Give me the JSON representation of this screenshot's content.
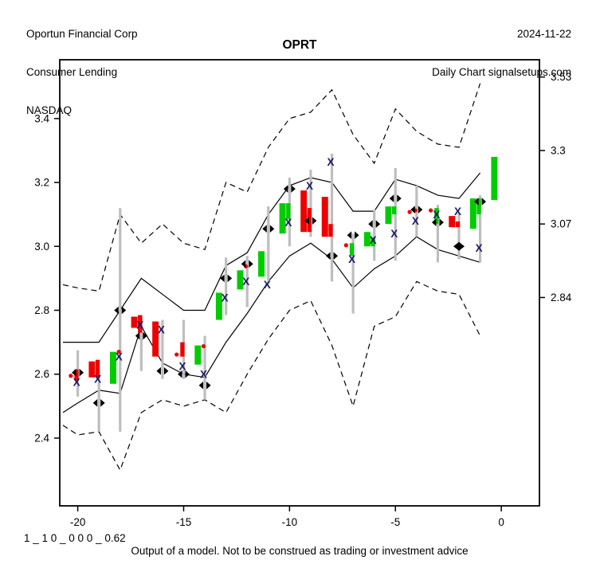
{
  "header": {
    "company": "Oportun Financial Corp",
    "industry": "Consumer Lending",
    "exchange": "NASDAQ",
    "date": "2024-11-22",
    "chart_type": "Daily Chart signalsetups.com"
  },
  "title": "OPRT",
  "footer": {
    "model_params": "1 _ 1 0 _ 0 0 0 _ 0.62",
    "disclaimer": "Output of a model. Not to be construed as trading or investment advice"
  },
  "chart_data": {
    "type": "candlestick-with-bands",
    "title": "OPRT",
    "xlabel": "",
    "ylabel": "",
    "grid": false,
    "x_axis": {
      "ticks": [
        -20,
        -15,
        -10,
        -5,
        0
      ],
      "range": [
        -20.85,
        1.8
      ]
    },
    "y_axis_left": {
      "ticks": [
        2.4,
        2.6,
        2.8,
        3.0,
        3.2,
        3.4
      ],
      "range": [
        2.188,
        3.584
      ]
    },
    "y_axis_right": {
      "ticks": [
        3.53,
        3.3,
        3.07,
        2.84
      ]
    },
    "colors": {
      "up": "#00CC00",
      "down": "#EE0000",
      "range_bar": "#BEBEBE",
      "line": "#000000",
      "x_marker": "#1a1a66",
      "diamond": "#000000",
      "background": "#ffffff"
    },
    "bands": {
      "x": [
        -20.7,
        -20,
        -19,
        -18,
        -17,
        -16,
        -15,
        -14,
        -13,
        -12,
        -11,
        -10,
        -9,
        -8,
        -7,
        -6,
        -5,
        -4,
        -3,
        -2,
        -1
      ],
      "upper_dashed": [
        2.88,
        2.87,
        2.86,
        3.1,
        3.01,
        3.07,
        3.01,
        2.99,
        3.2,
        3.17,
        3.31,
        3.4,
        3.42,
        3.49,
        3.35,
        3.26,
        3.43,
        3.36,
        3.32,
        3.31,
        3.51
      ],
      "upper_solid": [
        2.7,
        2.7,
        2.7,
        2.8,
        2.9,
        2.85,
        2.8,
        2.8,
        2.94,
        2.98,
        3.1,
        3.19,
        3.215,
        3.2,
        3.11,
        3.11,
        3.21,
        3.19,
        3.16,
        3.15,
        3.23
      ],
      "lower_solid": [
        2.48,
        2.51,
        2.55,
        2.54,
        2.75,
        2.635,
        2.6,
        2.59,
        2.7,
        2.79,
        2.89,
        2.97,
        3.01,
        2.96,
        2.87,
        2.93,
        2.97,
        3.03,
        2.99,
        2.97,
        2.95
      ],
      "lower_dashed": [
        2.44,
        2.41,
        2.42,
        2.3,
        2.48,
        2.52,
        2.5,
        2.52,
        2.48,
        2.6,
        2.71,
        2.8,
        2.83,
        2.69,
        2.5,
        2.75,
        2.78,
        2.89,
        2.86,
        2.85,
        2.72
      ]
    },
    "days": [
      {
        "x": -20,
        "range_bar": [
          2.53,
          2.675
        ],
        "bodies": [
          {
            "color": "red",
            "from": 2.585,
            "to": 2.605,
            "dot": true
          },
          {
            "color": "red",
            "from": 2.58,
            "to": 2.615
          }
        ],
        "x_marker": 2.575,
        "diamond": 2.605
      },
      {
        "x": -19,
        "range_bar": [
          2.42,
          2.6
        ],
        "bodies": [
          {
            "color": "red",
            "from": 2.59,
            "to": 2.64
          },
          {
            "color": "red",
            "from": 2.59,
            "to": 2.645
          }
        ],
        "x_marker": 2.585,
        "diamond": 2.51
      },
      {
        "x": -18,
        "range_bar": [
          2.42,
          3.12
        ],
        "bodies": [
          {
            "color": "green",
            "from": 2.57,
            "to": 2.67
          },
          {
            "color": "red",
            "from": 2.66,
            "to": 2.68,
            "dot": true
          }
        ],
        "x_marker": 2.655,
        "diamond": 2.8
      },
      {
        "x": -17,
        "range_bar": [
          2.61,
          2.78
        ],
        "bodies": [
          {
            "color": "red",
            "from": 2.745,
            "to": 2.78
          },
          {
            "color": "red",
            "from": 2.73,
            "to": 2.785
          }
        ],
        "x_marker": 2.755,
        "diamond": 2.72
      },
      {
        "x": -16,
        "range_bar": [
          2.585,
          2.77
        ],
        "bodies": [
          {
            "color": "red",
            "from": 2.655,
            "to": 2.765
          }
        ],
        "x_marker": 2.74,
        "diamond": 2.61
      },
      {
        "x": -15,
        "range_bar": [
          2.585,
          2.77
        ],
        "bodies": [
          {
            "color": "red",
            "from": 2.655,
            "to": 2.668,
            "dot": true
          },
          {
            "color": "red",
            "from": 2.655,
            "to": 2.7
          }
        ],
        "x_marker": 2.625,
        "diamond": 2.6
      },
      {
        "x": -14,
        "range_bar": [
          2.52,
          2.72
        ],
        "bodies": [
          {
            "color": "green",
            "from": 2.63,
            "to": 2.69
          },
          {
            "color": "red",
            "from": 2.68,
            "to": 2.695,
            "dot": true
          }
        ],
        "x_marker": 2.6,
        "diamond": 2.565
      },
      {
        "x": -13,
        "range_bar": [
          2.785,
          2.965
        ],
        "bodies": [
          {
            "color": "green",
            "from": 2.77,
            "to": 2.855
          }
        ],
        "x_marker": 2.84,
        "diamond": 2.9
      },
      {
        "x": -12,
        "range_bar": [
          2.81,
          2.97
        ],
        "bodies": [
          {
            "color": "green",
            "from": 2.865,
            "to": 2.925
          },
          {
            "color": "red",
            "from": 2.93,
            "to": 2.945,
            "dot": true
          }
        ],
        "x_marker": 2.89,
        "diamond": 2.945
      },
      {
        "x": -11,
        "range_bar": [
          2.885,
          3.125
        ],
        "bodies": [
          {
            "color": "green",
            "from": 2.905,
            "to": 2.985
          }
        ],
        "x_marker": 2.88,
        "diamond": 3.055
      },
      {
        "x": -10,
        "range_bar": [
          3.0,
          3.215
        ],
        "bodies": [
          {
            "color": "green",
            "from": 3.04,
            "to": 3.135
          },
          {
            "color": "green",
            "from": 3.085,
            "to": 3.135
          }
        ],
        "x_marker": 3.075,
        "diamond": 3.18
      },
      {
        "x": -9,
        "range_bar": [
          3.03,
          3.24
        ],
        "bodies": [
          {
            "color": "red",
            "from": 3.045,
            "to": 3.175
          },
          {
            "color": "red",
            "from": 3.045,
            "to": 3.12
          }
        ],
        "x_marker": 3.19,
        "diamond": 3.08
      },
      {
        "x": -8,
        "range_bar": [
          2.89,
          3.29
        ],
        "bodies": [
          {
            "color": "red",
            "from": 3.03,
            "to": 3.155
          },
          {
            "color": "red",
            "from": 3.03,
            "to": 3.07
          }
        ],
        "x_marker": 3.265,
        "diamond": 2.97
      },
      {
        "x": -7,
        "range_bar": [
          2.79,
          3.04
        ],
        "bodies": [
          {
            "color": "red",
            "from": 2.995,
            "to": 3.012,
            "dot": true
          },
          {
            "color": "green",
            "from": 2.97,
            "to": 3.01
          }
        ],
        "x_marker": 2.96,
        "diamond": 3.035
      },
      {
        "x": -6,
        "range_bar": [
          2.955,
          3.115
        ],
        "bodies": [
          {
            "color": "green",
            "from": 3.0,
            "to": 3.045
          },
          {
            "color": "green",
            "from": 3.0,
            "to": 3.028
          }
        ],
        "x_marker": 3.02,
        "diamond": 3.07
      },
      {
        "x": -5,
        "range_bar": [
          2.955,
          3.245
        ],
        "bodies": [
          {
            "color": "green",
            "from": 3.07,
            "to": 3.125
          },
          {
            "color": "green",
            "from": 3.1,
            "to": 3.125
          }
        ],
        "x_marker": 3.04,
        "diamond": 3.15
      },
      {
        "x": -4,
        "range_bar": [
          3.03,
          3.19
        ],
        "bodies": [
          {
            "color": "red",
            "from": 3.1,
            "to": 3.115,
            "dot": true
          },
          {
            "color": "red",
            "from": 3.105,
            "to": 3.12,
            "dot": true
          }
        ],
        "x_marker": 3.08,
        "diamond": 3.115
      },
      {
        "x": -3,
        "range_bar": [
          2.95,
          3.13
        ],
        "bodies": [
          {
            "color": "red",
            "from": 3.105,
            "to": 3.12,
            "dot": true
          },
          {
            "color": "green",
            "from": 3.07,
            "to": 3.12
          }
        ],
        "x_marker": 3.1,
        "diamond": 3.075
      },
      {
        "x": -2,
        "range_bar": [
          2.96,
          3.105
        ],
        "bodies": [
          {
            "color": "red",
            "from": 3.06,
            "to": 3.095
          },
          {
            "color": "red",
            "from": 3.06,
            "to": 3.078
          }
        ],
        "x_marker": 3.11,
        "diamond": 3.0,
        "diamond_style": "full"
      },
      {
        "x": -1,
        "range_bar": [
          2.95,
          3.16
        ],
        "bodies": [
          {
            "color": "green",
            "from": 3.055,
            "to": 3.15
          },
          {
            "color": "green",
            "from": 3.1,
            "to": 3.15
          }
        ],
        "x_marker": 2.995,
        "diamond": 3.14
      },
      {
        "x": 0,
        "range_bar": null,
        "bodies": [
          {
            "color": "green",
            "from": 3.145,
            "to": 3.28
          }
        ],
        "x_marker": null,
        "diamond": null
      }
    ]
  }
}
